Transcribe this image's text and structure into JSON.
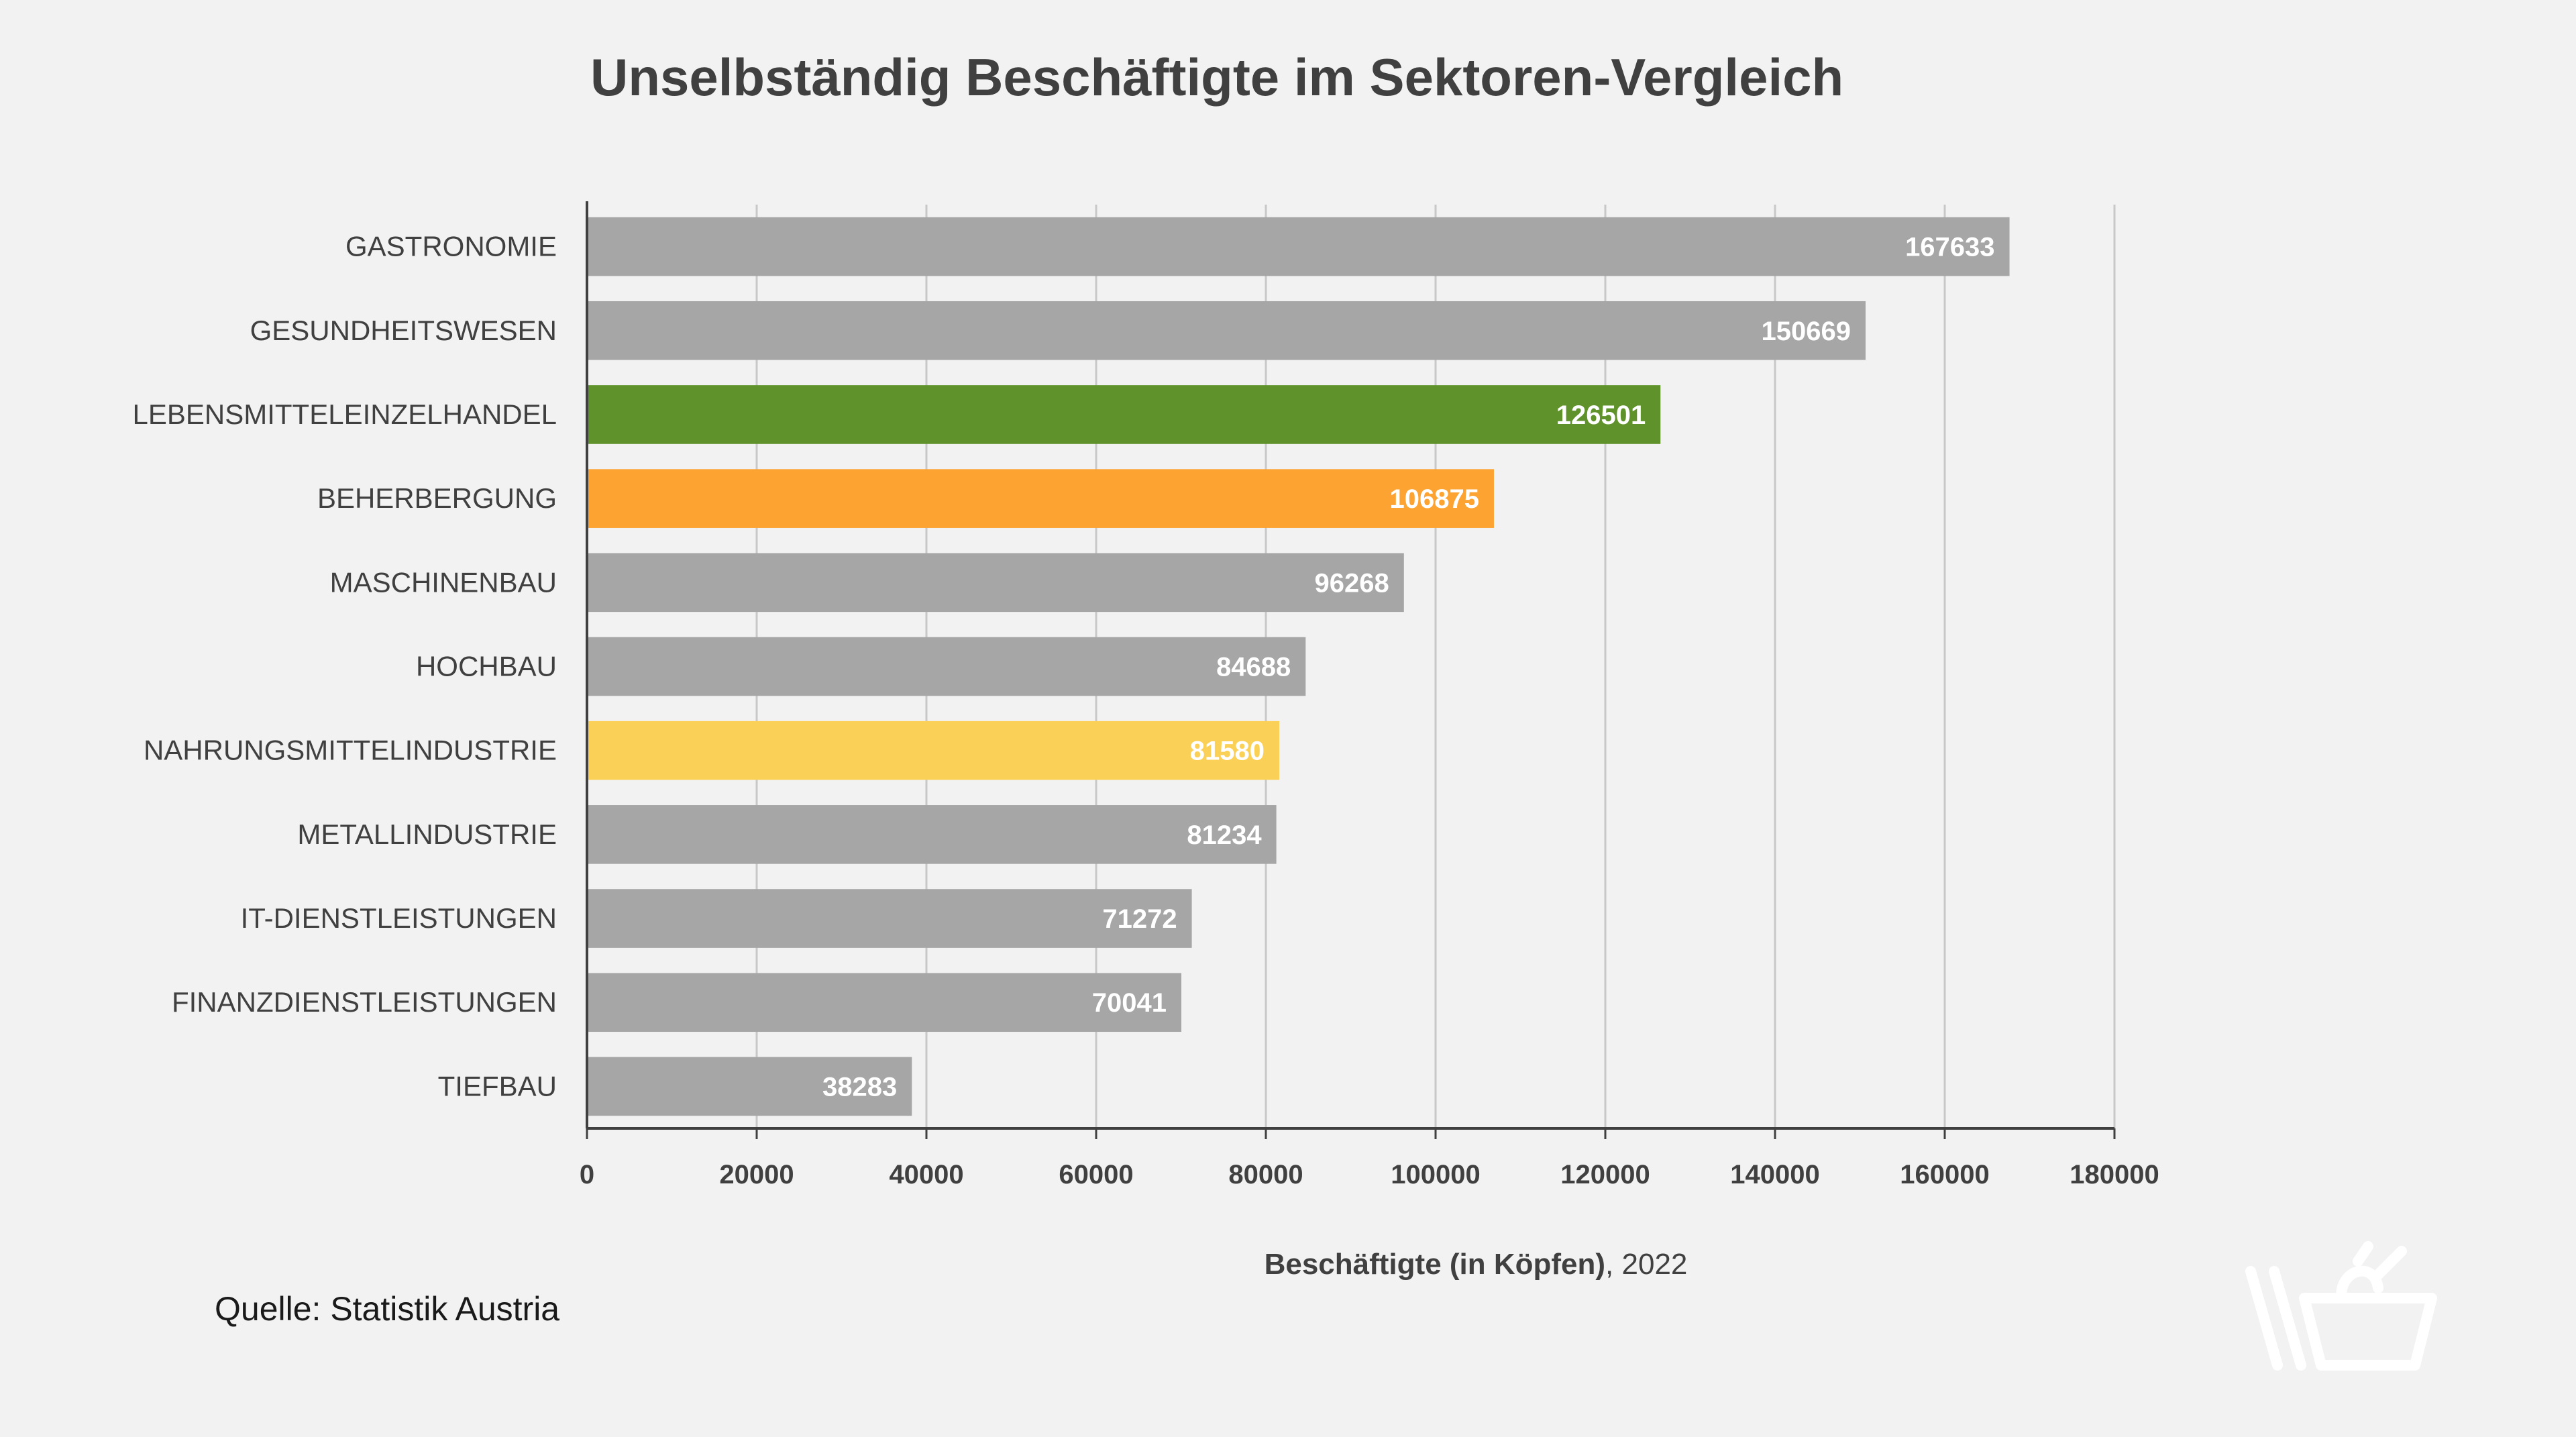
{
  "title": "Unselbständig Beschäftigte im Sektoren-Vergleich",
  "xlabel_bold": "Beschäftigte (in Köpfen)",
  "xlabel_rest": ", 2022",
  "source": "Quelle: Statistik Austria",
  "logo_icon": "shopping-basket-icon",
  "colors": {
    "default_bar": "#a6a6a6",
    "highlight_green": "#5f922b",
    "highlight_orange": "#fda332",
    "highlight_yellow": "#fad057",
    "grid": "#c8c8c8",
    "axis": "#404040",
    "background": "#f2f2f2"
  },
  "chart_data": {
    "type": "bar",
    "orientation": "horizontal",
    "title": "Unselbständig Beschäftigte im Sektoren-Vergleich",
    "xlabel": "Beschäftigte (in Köpfen), 2022",
    "ylabel": "",
    "categories": [
      "GASTRONOMIE",
      "GESUNDHEITSWESEN",
      "LEBENSMITTELEINZELHANDEL",
      "BEHERBERGUNG",
      "MASCHINENBAU",
      "HOCHBAU",
      "NAHRUNGSMITTELINDUSTRIE",
      "METALLINDUSTRIE",
      "IT-DIENSTLEISTUNGEN",
      "FINANZDIENSTLEISTUNGEN",
      "TIEFBAU"
    ],
    "values": [
      167633,
      150669,
      126501,
      106875,
      96268,
      84688,
      81580,
      81234,
      71272,
      70041,
      38283
    ],
    "bar_colors": [
      "#a6a6a6",
      "#a6a6a6",
      "#5f922b",
      "#fda332",
      "#a6a6a6",
      "#a6a6a6",
      "#fad057",
      "#a6a6a6",
      "#a6a6a6",
      "#a6a6a6",
      "#a6a6a6"
    ],
    "xlim": [
      0,
      180000
    ],
    "xticks": [
      0,
      20000,
      40000,
      60000,
      80000,
      100000,
      120000,
      140000,
      160000,
      180000
    ],
    "grid": true,
    "legend": "none"
  }
}
